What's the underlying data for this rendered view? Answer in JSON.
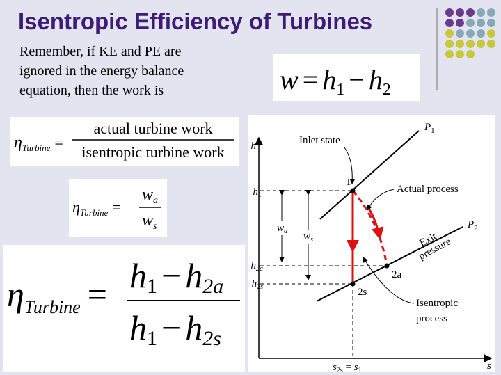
{
  "title": "Isentropic Efficiency of Turbines",
  "intro": {
    "lines": [
      "Remember, if KE and PE are",
      "ignored in the energy balance",
      "equation, then the work is"
    ]
  },
  "work_equation": {
    "w": "w",
    "eq": "=",
    "h1": "h",
    "s1": "1",
    "minus": "−",
    "h2": "h",
    "s2": "2"
  },
  "efficiency_definition": {
    "eta": "η",
    "sub": "Turbine",
    "eq": "=",
    "numerator": "actual turbine work",
    "denominator": "isentropic turbine work"
  },
  "efficiency_work": {
    "eta": "η",
    "sub": "Turbine",
    "eq": "=",
    "num": "w",
    "num_sub": "a",
    "den": "w",
    "den_sub": "s"
  },
  "efficiency_enthalpy": {
    "eta": "η",
    "sub": "Turbine",
    "eq": "=",
    "num": {
      "h1": "h",
      "s1": "1",
      "minus": "−",
      "h2": "h",
      "s2": "2a"
    },
    "den": {
      "h1": "h",
      "s1": "1",
      "minus": "−",
      "h2": "h",
      "s2": "2s"
    }
  },
  "diagram": {
    "y_axis": "h",
    "x_axis": "s",
    "p1": "P",
    "p1_sub": "1",
    "p2": "P",
    "p2_sub": "2",
    "inlet_state": "Inlet state",
    "actual_process": "Actual process",
    "exit_pressure": [
      "Exit",
      "pressure"
    ],
    "isentropic_process": [
      "Isentropic",
      "process"
    ],
    "state_1": "1",
    "state_2a": "2a",
    "state_2s": "2s",
    "h1": "h",
    "h1_sub": "1",
    "h2a": "h",
    "h2a_sub": "2a",
    "h2s": "h",
    "h2s_sub": "2s",
    "wa": "w",
    "wa_sub": "a",
    "ws": "w",
    "ws_sub": "s",
    "s_label": {
      "s": "s",
      "s_sub": "2s",
      "eq": " = ",
      "s1": "s",
      "s1_sub": "1"
    }
  }
}
